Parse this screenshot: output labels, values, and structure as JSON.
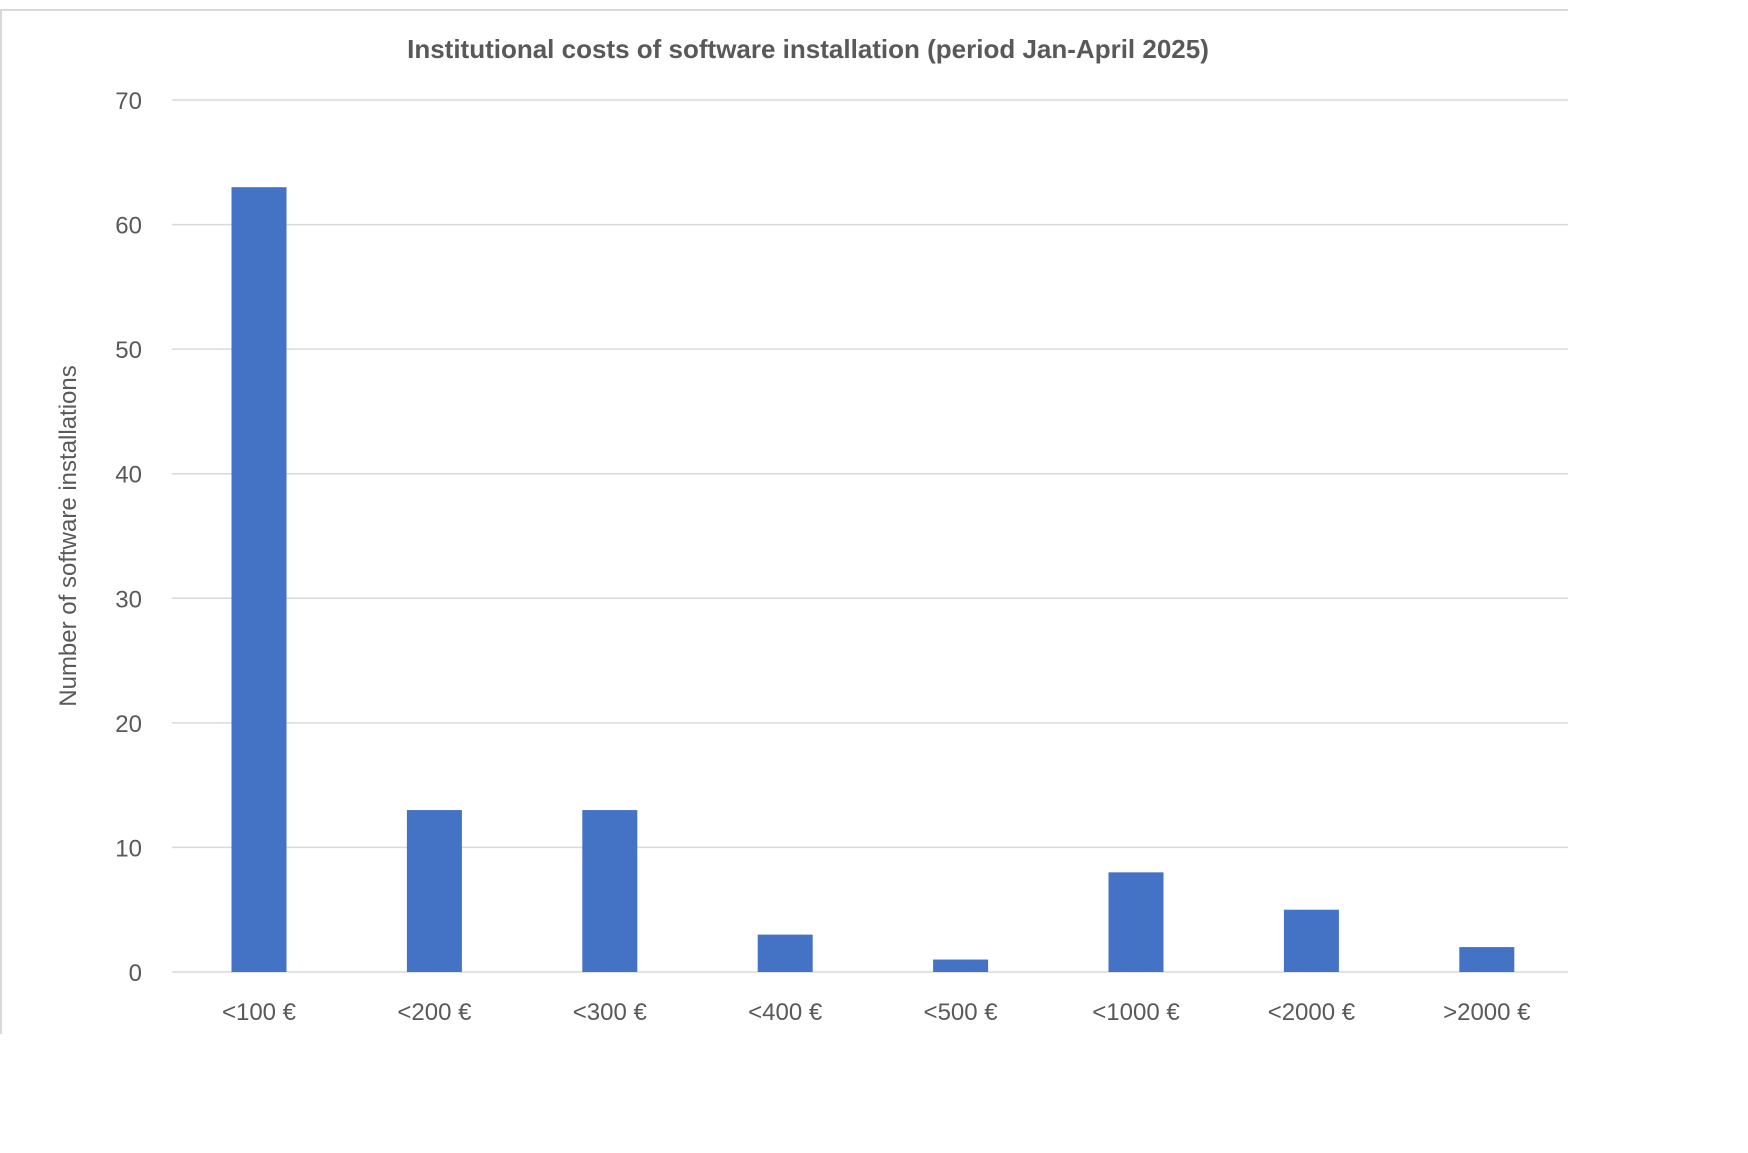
{
  "chart_data": {
    "type": "bar",
    "title": "Institutional costs of software installation (period Jan-April 2025)",
    "xlabel": "",
    "ylabel": "Number of software installations",
    "categories": [
      "<100 €",
      "<200 €",
      "<300 €",
      "<400 €",
      "<500 €",
      "<1000 €",
      "<2000 €",
      ">2000 €"
    ],
    "values": [
      63,
      13,
      13,
      3,
      1,
      8,
      5,
      2
    ],
    "ylim": [
      0,
      70
    ],
    "yticks": [
      "0",
      "10",
      "20",
      "30",
      "40",
      "50",
      "60",
      "70"
    ],
    "grid": true,
    "legend": "none",
    "bar_color": "#4472c4"
  }
}
